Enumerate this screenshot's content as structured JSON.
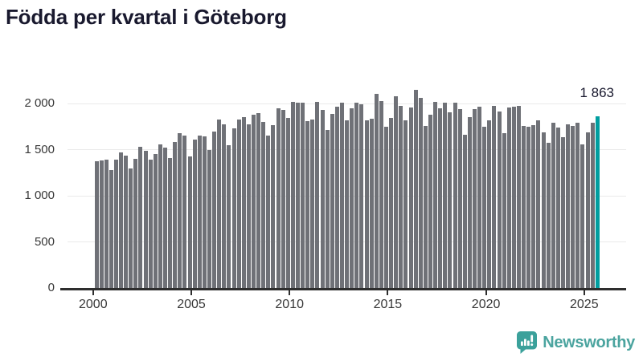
{
  "header": {
    "title": "Födda per kvartal i Göteborg"
  },
  "chart_data": {
    "type": "bar",
    "title": "Födda per kvartal i Göteborg",
    "frequency": "quarterly",
    "start_period": "2000 K1",
    "end_period": "2025 K3",
    "categories": [
      "2000K1",
      "2000K2",
      "2000K3",
      "2000K4",
      "2001K1",
      "2001K2",
      "2001K3",
      "2001K4",
      "2002K1",
      "2002K2",
      "2002K3",
      "2002K4",
      "2003K1",
      "2003K2",
      "2003K3",
      "2003K4",
      "2004K1",
      "2004K2",
      "2004K3",
      "2004K4",
      "2005K1",
      "2005K2",
      "2005K3",
      "2005K4",
      "2006K1",
      "2006K2",
      "2006K3",
      "2006K4",
      "2007K1",
      "2007K2",
      "2007K3",
      "2007K4",
      "2008K1",
      "2008K2",
      "2008K3",
      "2008K4",
      "2009K1",
      "2009K2",
      "2009K3",
      "2009K4",
      "2010K1",
      "2010K2",
      "2010K3",
      "2010K4",
      "2011K1",
      "2011K2",
      "2011K3",
      "2011K4",
      "2012K1",
      "2012K2",
      "2012K3",
      "2012K4",
      "2013K1",
      "2013K2",
      "2013K3",
      "2013K4",
      "2014K1",
      "2014K2",
      "2014K3",
      "2014K4",
      "2015K1",
      "2015K2",
      "2015K3",
      "2015K4",
      "2016K1",
      "2016K2",
      "2016K3",
      "2016K4",
      "2017K1",
      "2017K2",
      "2017K3",
      "2017K4",
      "2018K1",
      "2018K2",
      "2018K3",
      "2018K4",
      "2019K1",
      "2019K2",
      "2019K3",
      "2019K4",
      "2020K1",
      "2020K2",
      "2020K3",
      "2020K4",
      "2021K1",
      "2021K2",
      "2021K3",
      "2021K4",
      "2022K1",
      "2022K2",
      "2022K3",
      "2022K4",
      "2023K1",
      "2023K2",
      "2023K3",
      "2023K4",
      "2024K1",
      "2024K2",
      "2024K3",
      "2024K4",
      "2025K1",
      "2025K2",
      "2025K3"
    ],
    "values": [
      1372,
      1380,
      1390,
      1282,
      1394,
      1470,
      1438,
      1298,
      1397,
      1532,
      1488,
      1394,
      1450,
      1560,
      1520,
      1410,
      1580,
      1676,
      1650,
      1428,
      1610,
      1648,
      1640,
      1493,
      1700,
      1830,
      1778,
      1551,
      1732,
      1822,
      1854,
      1775,
      1877,
      1900,
      1800,
      1656,
      1767,
      1945,
      1927,
      1846,
      2017,
      2006,
      2006,
      1811,
      1822,
      2017,
      1933,
      1709,
      1889,
      1965,
      2012,
      1820,
      1950,
      2009,
      1994,
      1819,
      1838,
      2108,
      2030,
      1745,
      1844,
      2076,
      1977,
      1818,
      1960,
      2146,
      2059,
      1760,
      1882,
      2021,
      1949,
      2012,
      1907,
      2009,
      1936,
      1659,
      1848,
      1942,
      1965,
      1752,
      1819,
      1971,
      1913,
      1679,
      1953,
      1965,
      1977,
      1760,
      1748,
      1768,
      1816,
      1684,
      1573,
      1792,
      1743,
      1632,
      1772,
      1757,
      1787,
      1558,
      1684,
      1787,
      1863
    ],
    "ylim": [
      0,
      2000
    ],
    "y_ticks": [
      0,
      500,
      1000,
      1500,
      2000
    ],
    "y_tick_labels": [
      "0",
      "500",
      "1 000",
      "1 500",
      "2 000"
    ],
    "x_ticks_years": [
      2000,
      2005,
      2010,
      2015,
      2020,
      2025
    ],
    "x_tick_labels": [
      "2000",
      "2005",
      "2010",
      "2015",
      "2020",
      "2025"
    ],
    "grid": "horizontal",
    "legend": "none",
    "bar_color": "#6f7177",
    "highlight": {
      "index": 102,
      "value": 1863,
      "label": "1 863",
      "color": "#009ea0"
    }
  },
  "footer": {
    "brand": "Newsworthy",
    "logo_icon": "bar-chart-speech-bubble-icon",
    "brand_color": "#4ba49f",
    "icon_color": "#3ba19b"
  }
}
